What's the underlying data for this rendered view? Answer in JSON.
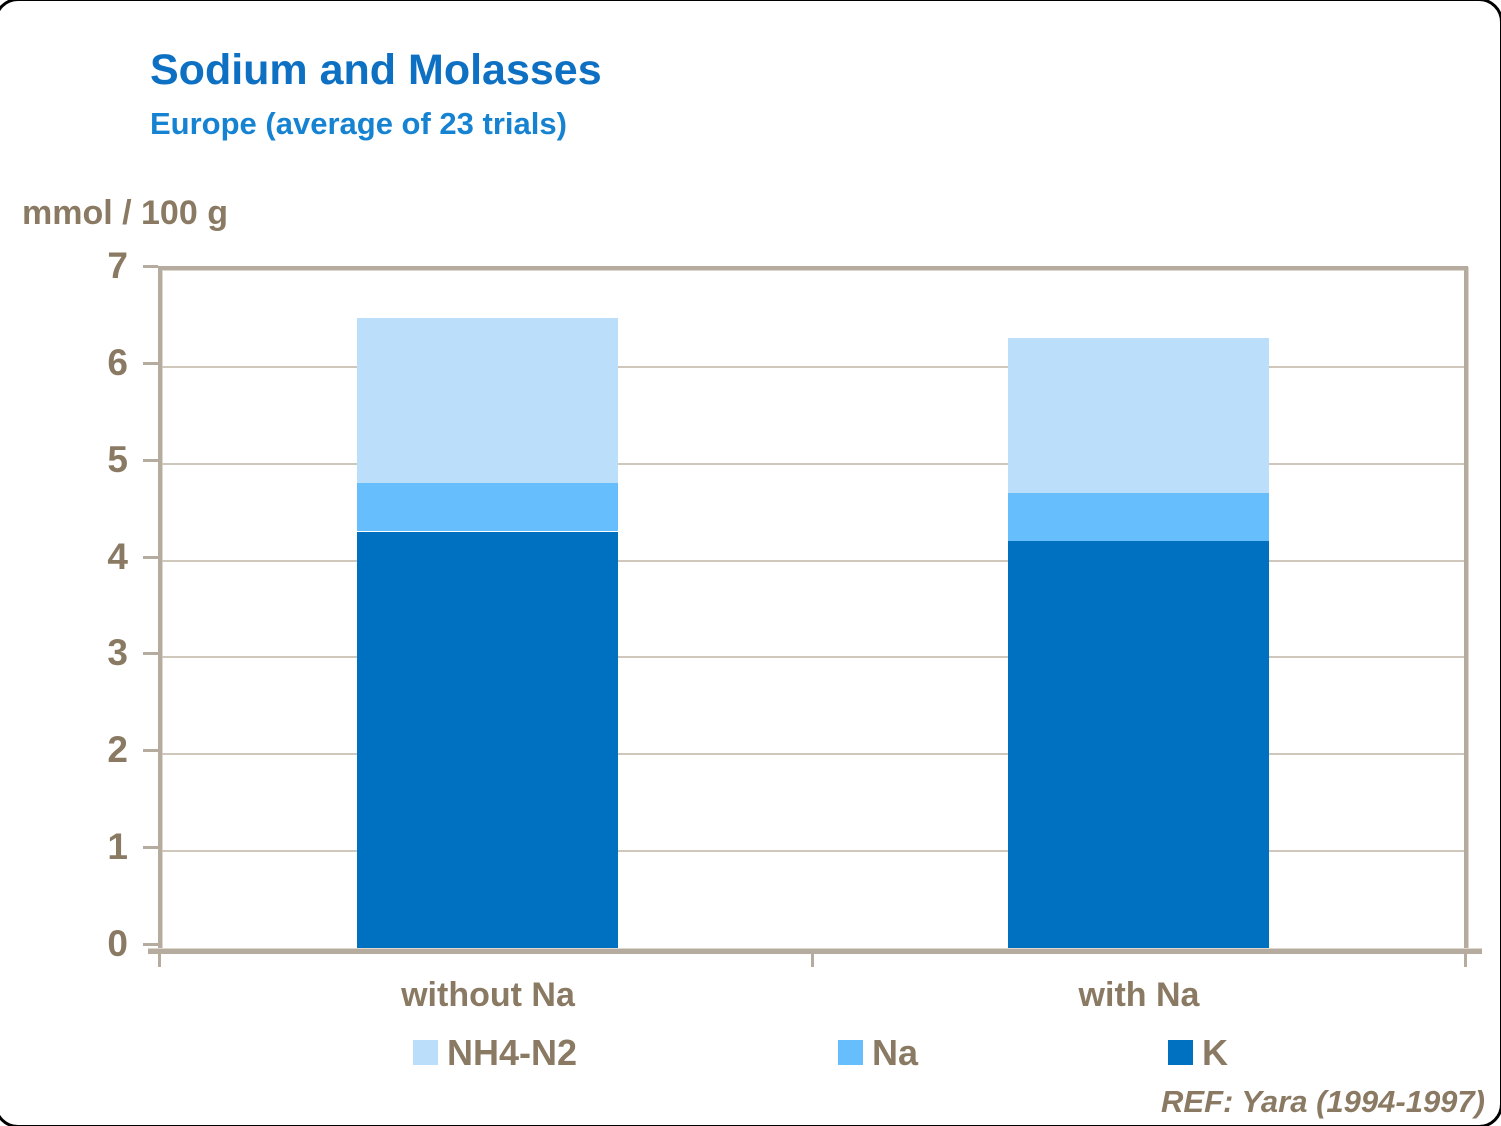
{
  "slide": {
    "title": "Sodium and Molasses",
    "subtitle": "Europe (average of 23 trials)",
    "y_unit_label": "mmol / 100 g",
    "reference": "REF: Yara (1994-1997)"
  },
  "colors": {
    "title_blue": "#0d70c2",
    "subtitle_blue": "#1583d2",
    "axis_text_brown": "#8a7a63",
    "frame_tan": "#b5ab9e",
    "gridline_tan": "#cfc7bb",
    "series_k_blue": "#0071c0",
    "series_na_blue": "#67befc",
    "series_nh4_blue": "#bbdefb"
  },
  "chart_data": {
    "type": "bar",
    "stacked": true,
    "title": "Sodium and Molasses",
    "subtitle": "Europe (average of 23 trials)",
    "ylabel": "mmol / 100 g",
    "xlabel": "",
    "ylim": [
      0,
      7
    ],
    "yticks": [
      0,
      1,
      2,
      3,
      4,
      5,
      6,
      7
    ],
    "grid": true,
    "legend_position": "bottom",
    "categories": [
      "without Na",
      "with Na"
    ],
    "series": [
      {
        "name": "K",
        "values": [
          4.3,
          4.2
        ],
        "color": "#0071c0"
      },
      {
        "name": "Na",
        "values": [
          0.5,
          0.5
        ],
        "color": "#67befc"
      },
      {
        "name": "NH4-N2",
        "values": [
          1.7,
          1.6
        ],
        "color": "#bbdefb"
      }
    ],
    "stack_totals": [
      6.5,
      6.3
    ]
  },
  "legend": {
    "items": [
      {
        "label": "NH4-N2",
        "color": "#bbdefb"
      },
      {
        "label": "Na",
        "color": "#67befc"
      },
      {
        "label": "K",
        "color": "#0071c0"
      }
    ]
  }
}
